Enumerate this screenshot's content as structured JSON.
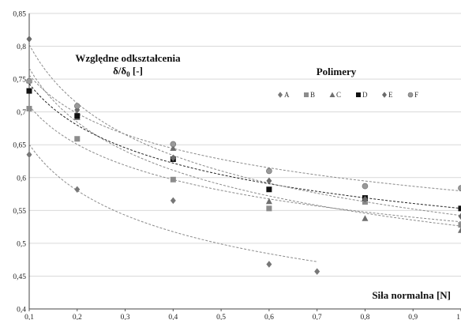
{
  "chart_data": {
    "type": "scatter",
    "title": "",
    "xlabel": "Siła normalna [N]",
    "ylabel_line1": "Względne odkształcenia",
    "ylabel_line2": "δ/δ",
    "ylabel_sub": "0",
    "ylabel_unit": " [-]",
    "legend_title": "Polimery",
    "legend_position": "top-right",
    "xlim": [
      0.1,
      1.0
    ],
    "ylim": [
      0.4,
      0.85
    ],
    "x_ticks": [
      "0,1",
      "0,2",
      "0,3",
      "0,4",
      "0,5",
      "0,6",
      "0,7",
      "0,8",
      "0,9",
      "1"
    ],
    "y_ticks": [
      "0,4",
      "0,45",
      "0,5",
      "0,55",
      "0,6",
      "0,65",
      "0,7",
      "0,75",
      "0,8",
      "0,85"
    ],
    "grid": "horizontal",
    "trendlines": "power, dashed",
    "series": [
      {
        "name": "A",
        "marker": "diamond",
        "color": "#777777",
        "x": [
          0.1,
          0.2,
          0.4,
          0.6,
          0.7
        ],
        "y": [
          0.635,
          0.582,
          0.565,
          0.468,
          0.457
        ],
        "trend_range": [
          0.1,
          0.7
        ]
      },
      {
        "name": "B",
        "marker": "square",
        "color": "#8c8c8c",
        "x": [
          0.1,
          0.2,
          0.4,
          0.6,
          0.8,
          1.0
        ],
        "y": [
          0.705,
          0.659,
          0.597,
          0.553,
          0.563,
          0.528
        ],
        "trend_range": [
          0.1,
          1.0
        ]
      },
      {
        "name": "C",
        "marker": "triangle",
        "color": "#6f6f6f",
        "x": [
          0.1,
          0.2,
          0.4,
          0.6,
          0.8,
          1.0
        ],
        "y": [
          0.748,
          0.692,
          0.645,
          0.564,
          0.538,
          0.52
        ],
        "trend_range": [
          0.1,
          1.0
        ]
      },
      {
        "name": "D",
        "marker": "square",
        "color": "#111111",
        "x": [
          0.1,
          0.2,
          0.4,
          0.6,
          0.8,
          1.0
        ],
        "y": [
          0.732,
          0.694,
          0.628,
          0.582,
          0.569,
          0.553
        ],
        "trend_range": [
          0.1,
          1.0
        ]
      },
      {
        "name": "E",
        "marker": "diamond",
        "color": "#6a6a6a",
        "x": [
          0.1,
          0.2,
          0.4,
          0.6,
          0.8,
          1.0
        ],
        "y": [
          0.811,
          0.703,
          0.63,
          0.595,
          0.567,
          0.541
        ],
        "trend_range": [
          0.1,
          1.0
        ]
      },
      {
        "name": "F",
        "marker": "circle",
        "color": "#9a9a9a",
        "x": [
          0.1,
          0.2,
          0.4,
          0.6,
          0.8,
          1.0
        ],
        "y": [
          0.747,
          0.709,
          0.651,
          0.61,
          0.587,
          0.584
        ],
        "trend_range": [
          0.1,
          1.0
        ]
      }
    ]
  }
}
